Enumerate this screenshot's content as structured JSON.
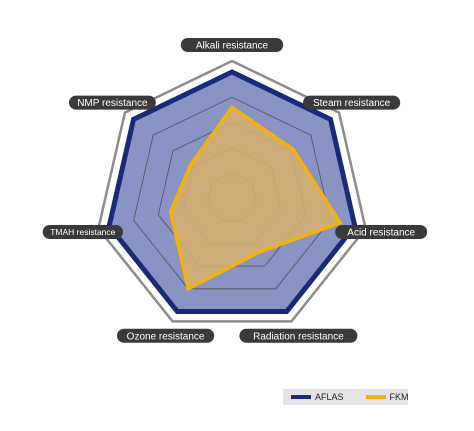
{
  "chart_data": {
    "type": "radar",
    "axes": [
      "Alkali resistance",
      "Steam resistance",
      "Acid resistance",
      "Radiation resistance",
      "Ozone resistance",
      "TMAH resistance",
      "NMP resistance"
    ],
    "rings": 5,
    "max": 5,
    "series": [
      {
        "name": "AFLAS",
        "values": [
          5,
          5,
          5,
          5,
          5,
          5,
          5
        ],
        "color": "#1a2a7a",
        "fill": "#8a94c4"
      },
      {
        "name": "FKM",
        "values": [
          3.6,
          3.1,
          4.4,
          2.4,
          4.0,
          2.5,
          2.1
        ],
        "color": "#f5b10b",
        "fill": "#d9b26e"
      }
    ],
    "outer_frame_color": "#8c8c8c",
    "grid_color": "#555555",
    "legend_position": "bottom-right"
  }
}
